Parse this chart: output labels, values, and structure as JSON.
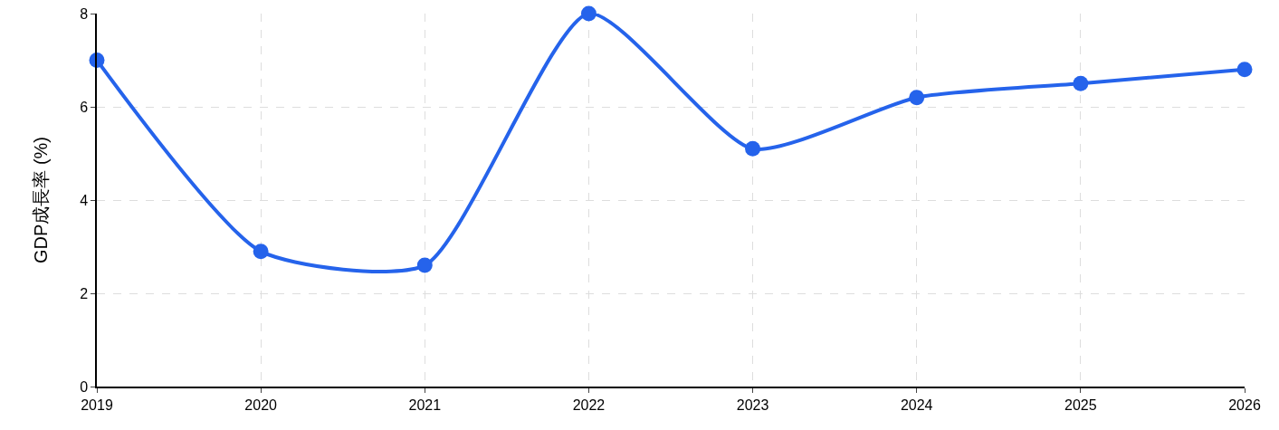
{
  "chart_data": {
    "type": "line",
    "ylabel": "GDP成長率 (%)",
    "x": [
      2019,
      2020,
      2021,
      2022,
      2023,
      2024,
      2025,
      2026
    ],
    "series": [
      {
        "color": "#2563eb",
        "values": [
          7.0,
          2.9,
          2.6,
          8.0,
          5.1,
          6.2,
          6.5,
          6.8
        ]
      }
    ],
    "xlim": [
      2019,
      2026
    ],
    "xticks": [
      2019,
      2020,
      2021,
      2022,
      2023,
      2024,
      2025,
      2026
    ],
    "ylim": [
      0,
      8
    ],
    "yticks": [
      0,
      2,
      4,
      6,
      8
    ],
    "grid": true,
    "marker": "circle",
    "line_style": "solid"
  }
}
